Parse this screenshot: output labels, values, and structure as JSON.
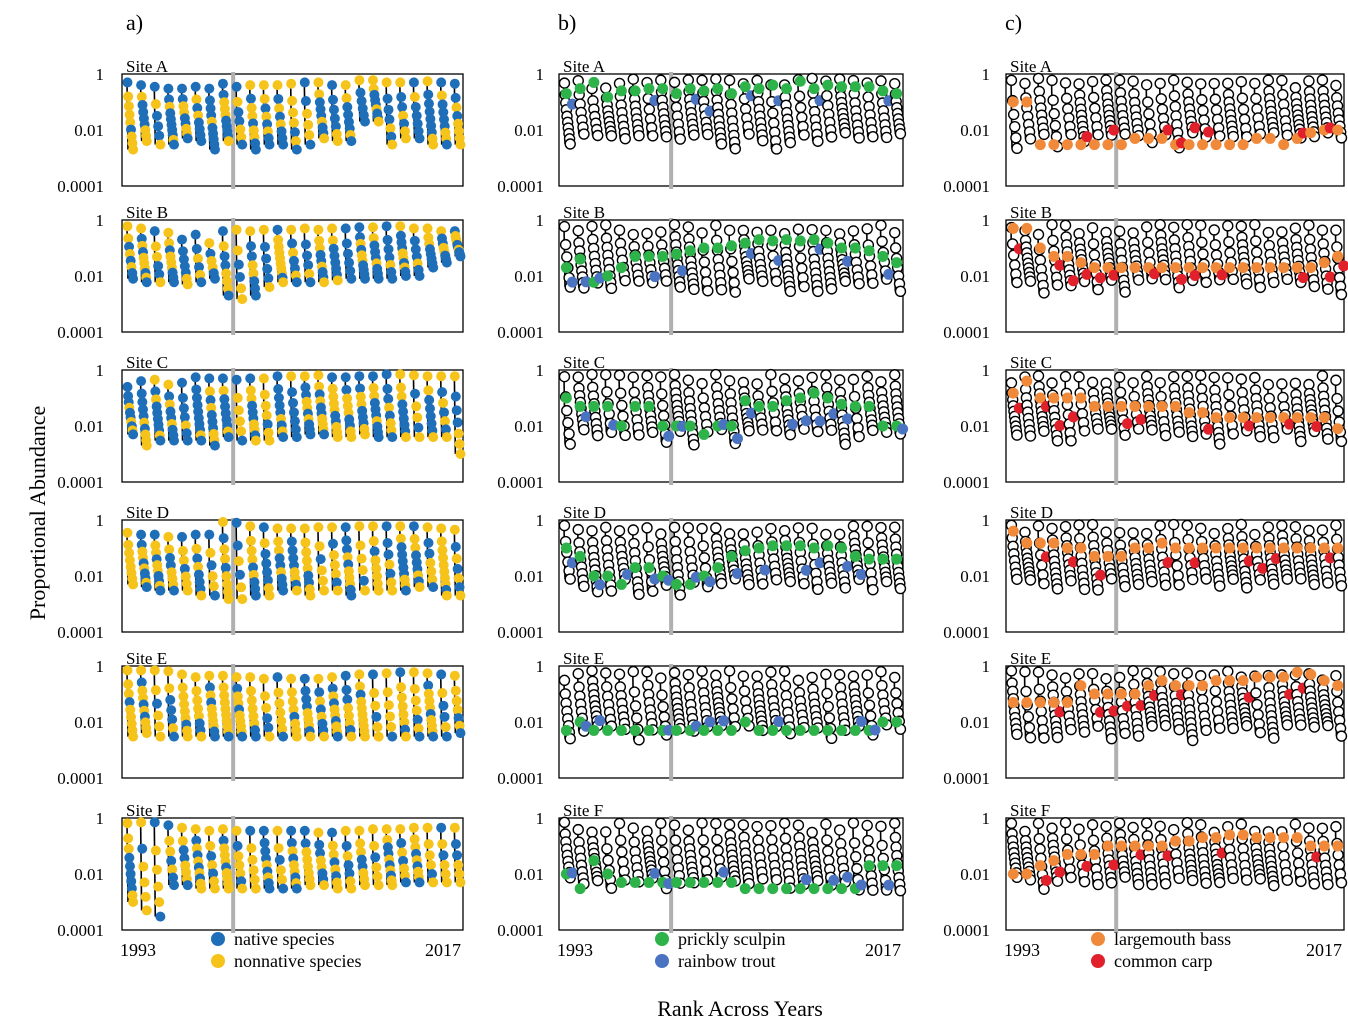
{
  "figure": {
    "y_axis_label": "Proportional Abundance",
    "x_axis_label": "Rank Across Years"
  },
  "panels": [
    {
      "id": "a",
      "label": "a)",
      "legend": [
        {
          "name": "native species",
          "color": "#1f6fb8"
        },
        {
          "name": "nonnative species",
          "color": "#f5c31a"
        }
      ]
    },
    {
      "id": "b",
      "label": "b)",
      "legend": [
        {
          "name": "prickly sculpin",
          "color": "#2db34a"
        },
        {
          "name": "rainbow trout",
          "color": "#4a73c2"
        }
      ]
    },
    {
      "id": "c",
      "label": "c)",
      "legend": [
        {
          "name": "largemouth bass",
          "color": "#f08a3a"
        },
        {
          "name": "common carp",
          "color": "#e0202a"
        }
      ]
    }
  ],
  "sites": [
    "Site A",
    "Site B",
    "Site C",
    "Site D",
    "Site E",
    "Site F"
  ],
  "year_start_label": "1993",
  "year_end_label": "2017",
  "chart_data": {
    "type": "scatter",
    "description_type": "rank abundance curves per year (25 years, 1993-2017), log-scaled proportional abundance",
    "yscale": "log",
    "ylim": [
      0.0001,
      1
    ],
    "y_ticks": [
      "1",
      "0.01",
      "0.0001"
    ],
    "x_range_years": [
      1993,
      2017
    ],
    "years_count": 25,
    "reference_line": "gray vertical line between year groups (approx. 1999/2000)",
    "panels": {
      "a": {
        "categories": [
          "native species",
          "nonnative species"
        ],
        "sites": {
          "Site A": {
            "top_by_year": [
              0.5,
              0.4,
              0.35,
              0.3,
              0.3,
              0.35,
              0.3,
              0.45,
              0.35,
              0.4,
              0.4,
              0.4,
              0.45,
              0.5,
              0.5,
              0.4,
              0.4,
              0.6,
              0.6,
              0.5,
              0.5,
              0.5,
              0.55,
              0.5,
              0.45
            ],
            "min_by_year": [
              0.002,
              0.004,
              0.003,
              0.003,
              0.005,
              0.004,
              0.002,
              0.004,
              0.003,
              0.002,
              0.003,
              0.003,
              0.002,
              0.003,
              0.005,
              0.004,
              0.004,
              0.02,
              0.02,
              0.003,
              0.005,
              0.005,
              0.003,
              0.003,
              0.003
            ]
          },
          "Site B": {
            "top_by_year": [
              0.6,
              0.5,
              0.4,
              0.35,
              0.2,
              0.3,
              0.15,
              0.4,
              0.45,
              0.4,
              0.45,
              0.45,
              0.45,
              0.5,
              0.45,
              0.5,
              0.5,
              0.55,
              0.55,
              0.6,
              0.6,
              0.5,
              0.5,
              0.4,
              0.4
            ],
            "min_by_year": [
              0.008,
              0.006,
              0.006,
              0.006,
              0.005,
              0.006,
              0.008,
              0.002,
              0.0015,
              0.002,
              0.004,
              0.006,
              0.006,
              0.006,
              0.006,
              0.007,
              0.008,
              0.008,
              0.008,
              0.008,
              0.01,
              0.01,
              0.02,
              0.03,
              0.05
            ]
          },
          "Site C": {
            "top_by_year": [
              0.25,
              0.4,
              0.45,
              0.3,
              0.35,
              0.55,
              0.5,
              0.5,
              0.45,
              0.5,
              0.5,
              0.6,
              0.6,
              0.6,
              0.65,
              0.55,
              0.55,
              0.6,
              0.6,
              0.7,
              0.7,
              0.65,
              0.6,
              0.6,
              0.6
            ],
            "min_by_year": [
              0.005,
              0.002,
              0.003,
              0.003,
              0.003,
              0.003,
              0.002,
              0.004,
              0.003,
              0.003,
              0.003,
              0.004,
              0.004,
              0.005,
              0.005,
              0.004,
              0.004,
              0.005,
              0.004,
              0.004,
              0.004,
              0.004,
              0.004,
              0.004,
              0.001
            ]
          },
          "Site D": {
            "top_by_year": [
              0.35,
              0.3,
              0.3,
              0.25,
              0.25,
              0.3,
              0.3,
              0.85,
              0.8,
              0.6,
              0.55,
              0.5,
              0.5,
              0.5,
              0.55,
              0.55,
              0.55,
              0.6,
              0.6,
              0.6,
              0.6,
              0.6,
              0.55,
              0.5,
              0.45
            ],
            "min_by_year": [
              0.005,
              0.004,
              0.003,
              0.003,
              0.003,
              0.002,
              0.002,
              0.0015,
              0.0015,
              0.002,
              0.002,
              0.003,
              0.003,
              0.002,
              0.003,
              0.003,
              0.002,
              0.003,
              0.003,
              0.003,
              0.003,
              0.004,
              0.004,
              0.002,
              0.002
            ]
          },
          "Site E": {
            "top_by_year": [
              0.7,
              0.7,
              0.7,
              0.65,
              0.5,
              0.4,
              0.45,
              0.45,
              0.4,
              0.4,
              0.35,
              0.4,
              0.35,
              0.35,
              0.35,
              0.4,
              0.45,
              0.5,
              0.5,
              0.55,
              0.6,
              0.6,
              0.55,
              0.5,
              0.45
            ],
            "min_by_year": [
              0.003,
              0.004,
              0.003,
              0.003,
              0.003,
              0.003,
              0.003,
              0.003,
              0.003,
              0.003,
              0.003,
              0.003,
              0.003,
              0.003,
              0.003,
              0.003,
              0.003,
              0.003,
              0.003,
              0.003,
              0.003,
              0.003,
              0.003,
              0.003,
              0.004
            ]
          },
          "Site F": {
            "top_by_year": [
              0.65,
              0.7,
              0.7,
              0.55,
              0.45,
              0.4,
              0.35,
              0.4,
              0.35,
              0.35,
              0.35,
              0.35,
              0.35,
              0.35,
              0.3,
              0.3,
              0.35,
              0.35,
              0.4,
              0.4,
              0.4,
              0.45,
              0.45,
              0.45,
              0.45
            ],
            "min_by_year": [
              0.001,
              0.0005,
              0.0003,
              0.004,
              0.004,
              0.003,
              0.003,
              0.003,
              0.003,
              0.003,
              0.003,
              0.003,
              0.003,
              0.004,
              0.004,
              0.003,
              0.003,
              0.004,
              0.004,
              0.004,
              0.005,
              0.005,
              0.005,
              0.005,
              0.005
            ]
          }
        }
      },
      "b": {
        "categories": [
          "prickly sculpin",
          "rainbow trout"
        ],
        "note": "other species shown as open black circles",
        "sites": {
          "Site A": {
            "prickly_sculpin_by_year": [
              0.2,
              0.3,
              0.5,
              0.15,
              0.25,
              0.25,
              0.3,
              0.3,
              0.2,
              0.3,
              0.25,
              0.3,
              0.2,
              0.35,
              0.3,
              0.4,
              0.3,
              0.55,
              0.3,
              0.4,
              0.35,
              0.35,
              0.35,
              0.25,
              0.2
            ]
          },
          "Site B": {
            "prickly_sculpin_by_year": [
              0.02,
              0.04,
              0.006,
              0.01,
              0.02,
              0.05,
              0.05,
              0.05,
              0.06,
              0.08,
              0.1,
              0.1,
              0.12,
              0.15,
              0.2,
              0.18,
              0.2,
              0.18,
              0.2,
              0.15,
              0.1,
              0.1,
              0.08,
              0.05,
              0.03
            ]
          },
          "Site C": {
            "prickly_sculpin_by_year": [
              0.1,
              0.05,
              0.05,
              0.05,
              0.01,
              0.05,
              0.05,
              0.01,
              0.01,
              0.01,
              0.005,
              0.01,
              0.01,
              0.08,
              0.05,
              0.05,
              0.08,
              0.1,
              0.15,
              0.1,
              0.06,
              0.05,
              0.05,
              0.01,
              0.01
            ]
          },
          "Site D": {
            "prickly_sculpin_by_year": [
              0.1,
              0.05,
              0.01,
              0.01,
              0.005,
              0.02,
              0.02,
              0.01,
              0.005,
              0.005,
              0.01,
              0.02,
              0.05,
              0.08,
              0.1,
              0.12,
              0.12,
              0.12,
              0.1,
              0.12,
              0.1,
              0.05,
              0.04,
              0.04,
              0.04
            ]
          },
          "Site E": {
            "prickly_sculpin_by_year": [
              0.005,
              0.01,
              0.005,
              0.005,
              0.005,
              0.005,
              0.005,
              0.005,
              0.005,
              0.005,
              0.005,
              0.005,
              0.005,
              0.01,
              0.005,
              0.005,
              0.005,
              0.005,
              0.005,
              0.005,
              0.005,
              0.005,
              0.005,
              0.01,
              0.01
            ]
          },
          "Site F": {
            "prickly_sculpin_by_year": [
              0.01,
              0.003,
              0.03,
              0.01,
              0.005,
              0.005,
              0.005,
              0.005,
              0.005,
              0.005,
              0.005,
              0.005,
              0.005,
              0.003,
              0.003,
              0.003,
              0.003,
              0.003,
              0.003,
              0.003,
              0.003,
              0.003,
              0.02,
              0.02,
              0.02
            ]
          }
        }
      },
      "c": {
        "categories": [
          "largemouth bass",
          "common carp"
        ],
        "note": "other species shown as open black circles",
        "sites": {
          "Site A": {
            "largemouth_bass_by_year": [
              0.1,
              0.1,
              0.003,
              0.003,
              0.003,
              0.003,
              0.003,
              0.003,
              0.003,
              0.005,
              0.005,
              0.005,
              0.003,
              0.003,
              0.003,
              0.003,
              0.003,
              0.003,
              0.005,
              0.005,
              0.003,
              0.005,
              0.008,
              0.01,
              0.01
            ]
          },
          "Site B": {
            "largemouth_bass_by_year": [
              0.5,
              0.5,
              0.1,
              0.05,
              0.05,
              0.03,
              0.02,
              0.02,
              0.02,
              0.02,
              0.02,
              0.02,
              0.02,
              0.02,
              0.02,
              0.02,
              0.02,
              0.02,
              0.02,
              0.02,
              0.02,
              0.02,
              0.02,
              0.03,
              0.05
            ]
          },
          "Site C": {
            "largemouth_bass_by_year": [
              0.15,
              0.4,
              0.1,
              0.1,
              0.1,
              0.1,
              0.05,
              0.05,
              0.05,
              0.05,
              0.05,
              0.05,
              0.05,
              0.03,
              0.03,
              0.02,
              0.02,
              0.02,
              0.02,
              0.02,
              0.02,
              0.02,
              0.02,
              0.02,
              0.008
            ]
          },
          "Site D": {
            "largemouth_bass_by_year": [
              0.4,
              0.15,
              0.15,
              0.15,
              0.1,
              0.1,
              0.05,
              0.05,
              0.05,
              0.1,
              0.1,
              0.15,
              0.1,
              0.1,
              0.1,
              0.1,
              0.1,
              0.1,
              0.1,
              0.1,
              0.1,
              0.1,
              0.1,
              0.1,
              0.1
            ]
          },
          "Site E": {
            "largemouth_bass_by_year": [
              0.05,
              0.05,
              0.05,
              0.05,
              0.05,
              0.2,
              0.1,
              0.1,
              0.1,
              0.1,
              0.2,
              0.3,
              0.2,
              0.2,
              0.2,
              0.3,
              0.3,
              0.3,
              0.4,
              0.4,
              0.4,
              0.6,
              0.5,
              0.3,
              0.2
            ]
          },
          "Site F": {
            "largemouth_bass_by_year": [
              0.01,
              0.01,
              0.02,
              0.03,
              0.05,
              0.05,
              0.05,
              0.1,
              0.1,
              0.1,
              0.1,
              0.1,
              0.15,
              0.15,
              0.2,
              0.2,
              0.25,
              0.25,
              0.2,
              0.2,
              0.2,
              0.2,
              0.1,
              0.1,
              0.1
            ]
          }
        }
      }
    }
  }
}
